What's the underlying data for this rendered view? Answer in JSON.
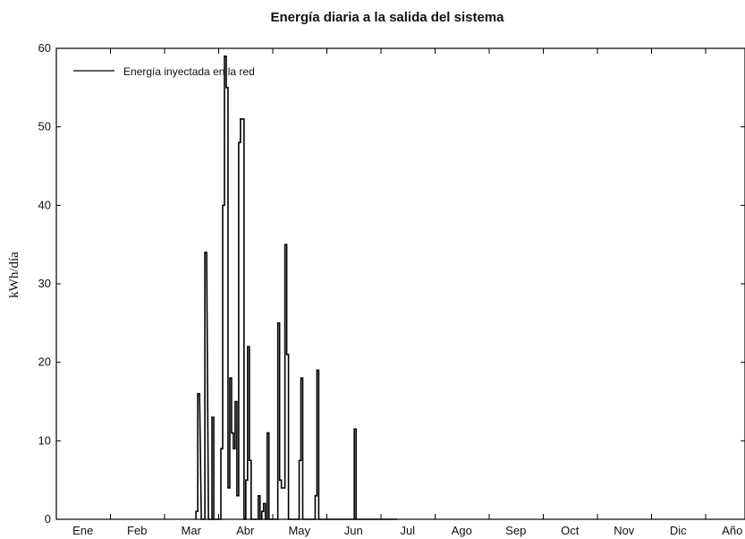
{
  "chart_data": {
    "type": "line",
    "title": "Energía diaria a la salida del sistema",
    "xlabel": "",
    "ylabel": "kWh/día",
    "ylim": [
      0,
      60
    ],
    "yticks": [
      0,
      10,
      20,
      30,
      40,
      50,
      60
    ],
    "categories": [
      "Ene",
      "Feb",
      "Mar",
      "Abr",
      "May",
      "Jun",
      "Jul",
      "Ago",
      "Sep",
      "Oct",
      "Nov",
      "Dic",
      "Año"
    ],
    "legend": {
      "position": "top-left",
      "entries": [
        "Energía inyectada en la red"
      ]
    },
    "grid": false,
    "series": [
      {
        "name": "Energía inyectada en la red",
        "color": "#000000",
        "x": [
          79,
          80,
          82,
          83,
          84,
          86,
          87,
          88,
          89,
          90,
          91,
          92,
          93,
          94,
          95,
          96,
          97,
          98,
          99,
          100,
          101,
          102,
          103,
          104,
          105,
          106,
          107,
          108,
          109,
          110,
          111,
          112,
          113,
          114,
          115,
          116,
          117,
          118,
          119,
          120,
          121,
          122,
          123,
          124,
          125,
          126,
          127,
          128,
          129,
          130,
          131,
          132,
          133,
          134,
          135,
          136,
          137,
          138,
          139,
          140,
          141,
          142,
          143,
          144,
          145,
          146,
          147,
          148,
          149,
          150,
          151,
          152,
          153,
          154,
          155,
          156,
          157,
          158,
          159,
          160,
          161,
          162,
          163,
          164,
          165,
          166,
          167,
          168,
          169,
          170,
          171,
          172,
          173,
          174,
          175,
          176,
          177,
          178,
          179,
          180,
          181,
          182,
          183,
          184,
          185,
          186,
          187,
          188,
          189,
          190,
          191
        ],
        "values": [
          1,
          16,
          0,
          0,
          34,
          0,
          0,
          13,
          0,
          0,
          0,
          0,
          9,
          40,
          59,
          55,
          4,
          18,
          11,
          9,
          15,
          3,
          48,
          51,
          51,
          0,
          5,
          22,
          7.5,
          0,
          0,
          0,
          0,
          3,
          0,
          1,
          2,
          0,
          11,
          0,
          0,
          0,
          0,
          0,
          25,
          5,
          4,
          4,
          35,
          21,
          0,
          0,
          0,
          0,
          0,
          0,
          7.5,
          18,
          0,
          0,
          0,
          0,
          0,
          0,
          0,
          3,
          19,
          0,
          0,
          0,
          0,
          0,
          0,
          0,
          0,
          0,
          0,
          0,
          0,
          0,
          0,
          0,
          0,
          0,
          0,
          0,
          0,
          11.5,
          0,
          0,
          0,
          0,
          0,
          0,
          0,
          0,
          0,
          0,
          0,
          0,
          0,
          0,
          0,
          0,
          0,
          0,
          0,
          0,
          0,
          0,
          0
        ]
      }
    ]
  }
}
